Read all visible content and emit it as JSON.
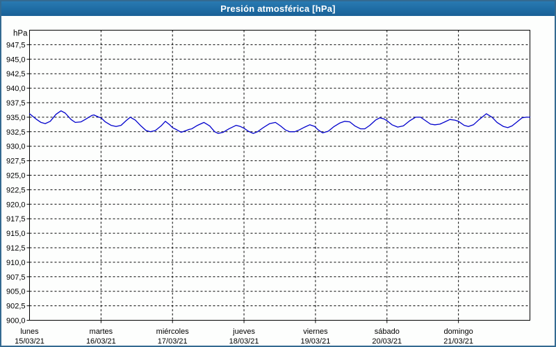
{
  "window": {
    "title": "Presión atmosférica [hPa]"
  },
  "colors": {
    "titlebar": "#1e6ca3",
    "frame_border": "#336a91",
    "plot_frame": "#000000",
    "gridline": "#000000",
    "curve": "#0000cc",
    "background": "#fdfefd",
    "title_text": "#ffffff",
    "axis_text": "#000000"
  },
  "chart_data": {
    "type": "line",
    "title": "Presión atmosférica [hPa]",
    "unit_label": "hPa",
    "ylim": [
      900,
      950
    ],
    "xlim_days": [
      0,
      7
    ],
    "grid": "dashed",
    "legend": "none",
    "y_ticks": [
      {
        "value": 947.5,
        "label": "947,5"
      },
      {
        "value": 945.0,
        "label": "945,0"
      },
      {
        "value": 942.5,
        "label": "942,5"
      },
      {
        "value": 940.0,
        "label": "940,0"
      },
      {
        "value": 937.5,
        "label": "937,5"
      },
      {
        "value": 935.0,
        "label": "935,0"
      },
      {
        "value": 932.5,
        "label": "932,5"
      },
      {
        "value": 930.0,
        "label": "930,0"
      },
      {
        "value": 927.5,
        "label": "927,5"
      },
      {
        "value": 925.0,
        "label": "925,0"
      },
      {
        "value": 922.5,
        "label": "922,5"
      },
      {
        "value": 920.0,
        "label": "920,0"
      },
      {
        "value": 917.5,
        "label": "917,5"
      },
      {
        "value": 915.0,
        "label": "915,0"
      },
      {
        "value": 912.5,
        "label": "912,5"
      },
      {
        "value": 910.0,
        "label": "910,0"
      },
      {
        "value": 907.5,
        "label": "907,5"
      },
      {
        "value": 905.0,
        "label": "905,0"
      },
      {
        "value": 902.5,
        "label": "902,5"
      },
      {
        "value": 900.0,
        "label": "900,0"
      }
    ],
    "x_days": [
      {
        "weekday": "lunes",
        "date": "15/03/21"
      },
      {
        "weekday": "martes",
        "date": "16/03/21"
      },
      {
        "weekday": "miércoles",
        "date": "17/03/21"
      },
      {
        "weekday": "jueves",
        "date": "18/03/21"
      },
      {
        "weekday": "viernes",
        "date": "19/03/21"
      },
      {
        "weekday": "sábado",
        "date": "20/03/21"
      },
      {
        "weekday": "domingo",
        "date": "21/03/21"
      }
    ],
    "series": [
      {
        "name": "Presión atmosférica",
        "color": "#0000cc",
        "points": [
          [
            0.0,
            935.6
          ],
          [
            0.1,
            934.6
          ],
          [
            0.16,
            934.1
          ],
          [
            0.22,
            933.9
          ],
          [
            0.29,
            934.3
          ],
          [
            0.37,
            935.5
          ],
          [
            0.44,
            936.1
          ],
          [
            0.5,
            935.7
          ],
          [
            0.58,
            934.6
          ],
          [
            0.64,
            934.1
          ],
          [
            0.72,
            934.2
          ],
          [
            0.79,
            934.7
          ],
          [
            0.87,
            935.3
          ],
          [
            0.9,
            935.4
          ],
          [
            0.97,
            935.0
          ],
          [
            1.0,
            934.9
          ],
          [
            1.06,
            934.2
          ],
          [
            1.14,
            933.6
          ],
          [
            1.21,
            933.4
          ],
          [
            1.28,
            933.6
          ],
          [
            1.35,
            934.4
          ],
          [
            1.41,
            935.0
          ],
          [
            1.48,
            934.5
          ],
          [
            1.55,
            933.6
          ],
          [
            1.63,
            932.7
          ],
          [
            1.69,
            932.5
          ],
          [
            1.76,
            932.7
          ],
          [
            1.84,
            933.5
          ],
          [
            1.9,
            934.3
          ],
          [
            1.96,
            933.7
          ],
          [
            2.0,
            933.2
          ],
          [
            2.05,
            932.9
          ],
          [
            2.12,
            932.4
          ],
          [
            2.19,
            932.7
          ],
          [
            2.23,
            932.9
          ],
          [
            2.27,
            933.0
          ],
          [
            2.35,
            933.6
          ],
          [
            2.44,
            934.1
          ],
          [
            2.52,
            933.5
          ],
          [
            2.59,
            932.5
          ],
          [
            2.64,
            932.2
          ],
          [
            2.71,
            932.4
          ],
          [
            2.79,
            933.0
          ],
          [
            2.89,
            933.6
          ],
          [
            2.95,
            933.4
          ],
          [
            3.0,
            933.1
          ],
          [
            3.06,
            932.6
          ],
          [
            3.13,
            932.2
          ],
          [
            3.19,
            932.5
          ],
          [
            3.27,
            933.2
          ],
          [
            3.36,
            933.9
          ],
          [
            3.44,
            934.1
          ],
          [
            3.51,
            933.5
          ],
          [
            3.58,
            932.8
          ],
          [
            3.64,
            932.5
          ],
          [
            3.71,
            932.5
          ],
          [
            3.77,
            932.8
          ],
          [
            3.85,
            933.3
          ],
          [
            3.92,
            933.7
          ],
          [
            3.99,
            933.4
          ],
          [
            4.04,
            932.8
          ],
          [
            4.1,
            932.3
          ],
          [
            4.18,
            932.6
          ],
          [
            4.26,
            933.4
          ],
          [
            4.34,
            934.0
          ],
          [
            4.41,
            934.3
          ],
          [
            4.48,
            934.2
          ],
          [
            4.55,
            933.5
          ],
          [
            4.63,
            933.0
          ],
          [
            4.69,
            933.0
          ],
          [
            4.76,
            933.6
          ],
          [
            4.84,
            934.5
          ],
          [
            4.9,
            934.9
          ],
          [
            4.96,
            934.7
          ],
          [
            5.0,
            934.4
          ],
          [
            5.07,
            933.7
          ],
          [
            5.15,
            933.3
          ],
          [
            5.23,
            933.5
          ],
          [
            5.32,
            934.4
          ],
          [
            5.4,
            935.0
          ],
          [
            5.47,
            935.0
          ],
          [
            5.54,
            934.4
          ],
          [
            5.61,
            933.8
          ],
          [
            5.67,
            933.7
          ],
          [
            5.74,
            933.8
          ],
          [
            5.81,
            934.2
          ],
          [
            5.88,
            934.6
          ],
          [
            5.95,
            934.5
          ],
          [
            6.0,
            934.3
          ],
          [
            6.08,
            933.6
          ],
          [
            6.14,
            933.4
          ],
          [
            6.21,
            933.7
          ],
          [
            6.29,
            934.6
          ],
          [
            6.39,
            935.6
          ],
          [
            6.47,
            935.0
          ],
          [
            6.54,
            934.1
          ],
          [
            6.63,
            933.4
          ],
          [
            6.69,
            933.2
          ],
          [
            6.75,
            933.5
          ],
          [
            6.82,
            934.2
          ],
          [
            6.89,
            934.9
          ],
          [
            6.95,
            935.0
          ],
          [
            7.0,
            935.0
          ]
        ]
      }
    ]
  }
}
